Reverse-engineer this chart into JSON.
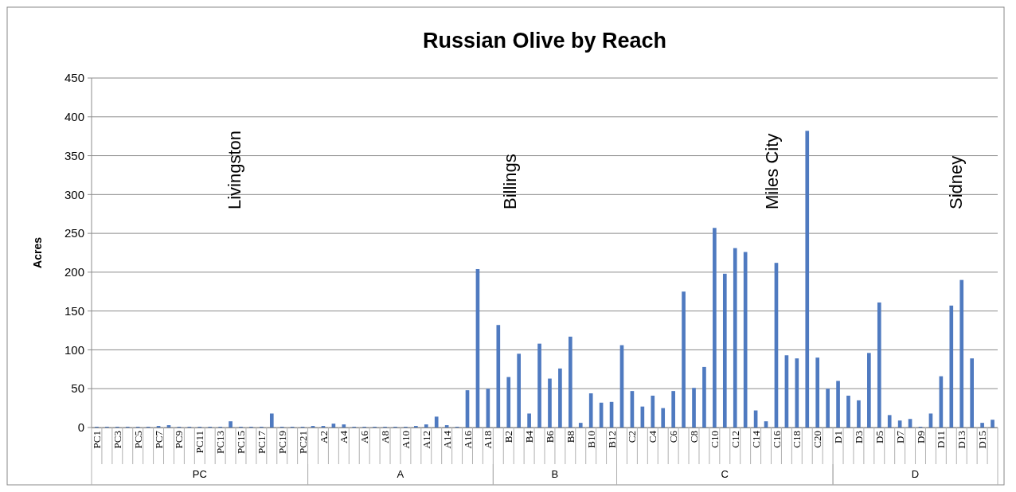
{
  "chart_data": {
    "type": "bar",
    "title": "Russian Olive by Reach",
    "ylabel": "Acres",
    "categories": [
      "PC1",
      null,
      "PC3",
      null,
      "PC5",
      null,
      "PC7",
      null,
      "PC9",
      null,
      "PC11",
      null,
      "PC13",
      null,
      "PC15",
      null,
      "PC17",
      null,
      "PC19",
      null,
      "PC21",
      null,
      "A2",
      null,
      "A4",
      null,
      "A6",
      null,
      "A8",
      null,
      "A10",
      null,
      "A12",
      null,
      "A14",
      null,
      "A16",
      null,
      "A18",
      null,
      "B2",
      null,
      "B4",
      null,
      "B6",
      null,
      "B8",
      null,
      "B10",
      null,
      "B12",
      null,
      "C2",
      null,
      "C4",
      null,
      "C6",
      null,
      "C8",
      null,
      "C10",
      null,
      "C12",
      null,
      "C14",
      null,
      "C16",
      null,
      "C18",
      null,
      "C20",
      null,
      "D1",
      null,
      "D3",
      null,
      "D5",
      null,
      "D7",
      null,
      "D9",
      null,
      "D11",
      null,
      "D13",
      null,
      "D15",
      null
    ],
    "values": [
      1,
      1,
      1,
      1,
      1,
      1,
      2,
      3,
      1,
      1,
      1,
      1,
      1,
      8,
      1,
      1,
      1,
      18,
      1,
      1,
      1,
      2,
      2,
      5,
      4,
      1,
      1,
      1,
      1,
      1,
      1,
      2,
      4,
      14,
      3,
      1,
      48,
      204,
      50,
      132,
      65,
      95,
      18,
      108,
      63,
      76,
      117,
      6,
      44,
      32,
      33,
      106,
      47,
      27,
      41,
      25,
      47,
      175,
      51,
      78,
      257,
      198,
      231,
      226,
      22,
      8,
      212,
      93,
      89,
      382,
      90,
      50,
      60,
      41,
      35,
      96,
      161,
      16,
      9,
      11,
      1,
      18,
      66,
      157,
      190,
      89,
      6,
      10
    ],
    "color": "#4f7ac0",
    "ylim": [
      0,
      450
    ],
    "yticks": [
      0,
      50,
      100,
      150,
      200,
      250,
      300,
      350,
      400,
      450
    ],
    "grid": "y",
    "annotations": [
      "Livingston",
      "Billings",
      "Miles City",
      "Sidney",
      "PC",
      "A",
      "B",
      "C",
      "D"
    ]
  }
}
